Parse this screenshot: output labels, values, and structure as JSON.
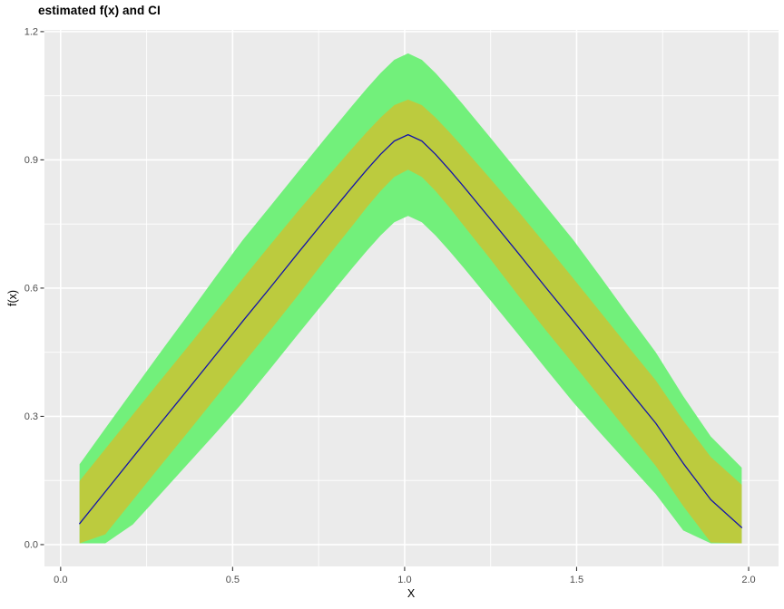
{
  "title": "estimated f(x) and CI",
  "colors": {
    "panel_bg": "#EBEBEB",
    "grid": "#FFFFFF",
    "outer_band": "#72F07B",
    "inner_band": "#BCCB3E",
    "line": "#1414AA",
    "tick_label": "#4D4D4D",
    "tick_mark": "#333333",
    "text": "#000000"
  },
  "axes": {
    "x": {
      "label": "X"
    },
    "y": {
      "label": "f(x)"
    }
  },
  "chart_data": {
    "type": "line",
    "title": "estimated f(x) and CI",
    "xlabel": "X",
    "ylabel": "f(x)",
    "xlim": [
      -0.047,
      2.087
    ],
    "ylim": [
      -0.051,
      1.204
    ],
    "grid": "white major and minor gridlines on grey panel, legend none",
    "x_ticks": [
      {
        "v": 0.0,
        "label": "0.0"
      },
      {
        "v": 0.5,
        "label": "0.5"
      },
      {
        "v": 1.0,
        "label": "1.0"
      },
      {
        "v": 1.5,
        "label": "1.5"
      },
      {
        "v": 2.0,
        "label": "2.0"
      }
    ],
    "y_ticks": [
      {
        "v": 0.0,
        "label": "0.0"
      },
      {
        "v": 0.3,
        "label": "0.3"
      },
      {
        "v": 0.6,
        "label": "0.6"
      },
      {
        "v": 0.9,
        "label": "0.9"
      },
      {
        "v": 1.2,
        "label": "1.2"
      }
    ],
    "x_minor": [
      0.25,
      0.75,
      1.25,
      1.75
    ],
    "y_minor": [
      0.15,
      0.45,
      0.75,
      1.05
    ],
    "x": [
      0.055,
      0.13,
      0.21,
      0.29,
      0.37,
      0.45,
      0.53,
      0.61,
      0.69,
      0.77,
      0.85,
      0.89,
      0.93,
      0.97,
      1.01,
      1.05,
      1.09,
      1.13,
      1.17,
      1.25,
      1.33,
      1.41,
      1.49,
      1.57,
      1.65,
      1.73,
      1.81,
      1.89,
      1.98
    ],
    "bands": [
      {
        "name": "outer CI",
        "color": "#72F07B",
        "hi": [
          0.188,
          0.272,
          0.361,
          0.45,
          0.537,
          0.626,
          0.713,
          0.792,
          0.872,
          0.951,
          1.029,
          1.067,
          1.103,
          1.134,
          1.149,
          1.134,
          1.103,
          1.067,
          1.029,
          0.951,
          0.872,
          0.792,
          0.713,
          0.626,
          0.537,
          0.45,
          0.347,
          0.253,
          0.18
        ],
        "lo": [
          0.003,
          0.003,
          0.047,
          0.118,
          0.189,
          0.26,
          0.333,
          0.412,
          0.492,
          0.571,
          0.649,
          0.687,
          0.723,
          0.754,
          0.769,
          0.754,
          0.723,
          0.687,
          0.649,
          0.571,
          0.492,
          0.412,
          0.333,
          0.26,
          0.189,
          0.118,
          0.033,
          0.003,
          0.003
        ]
      },
      {
        "name": "inner CI",
        "color": "#BCCB3E",
        "hi": [
          0.149,
          0.224,
          0.304,
          0.384,
          0.463,
          0.543,
          0.623,
          0.702,
          0.78,
          0.855,
          0.929,
          0.965,
          0.999,
          1.028,
          1.041,
          1.028,
          0.999,
          0.965,
          0.929,
          0.855,
          0.78,
          0.702,
          0.623,
          0.543,
          0.463,
          0.384,
          0.29,
          0.205,
          0.14
        ],
        "lo": [
          0.003,
          0.024,
          0.104,
          0.184,
          0.263,
          0.343,
          0.423,
          0.502,
          0.583,
          0.667,
          0.748,
          0.789,
          0.827,
          0.86,
          0.877,
          0.86,
          0.827,
          0.789,
          0.748,
          0.667,
          0.583,
          0.502,
          0.423,
          0.343,
          0.263,
          0.184,
          0.09,
          0.005,
          0.003
        ]
      }
    ],
    "series": [
      {
        "name": "estimated f(x)",
        "color": "#1414AA",
        "values": [
          0.049,
          0.124,
          0.204,
          0.284,
          0.363,
          0.443,
          0.523,
          0.602,
          0.682,
          0.761,
          0.839,
          0.877,
          0.913,
          0.944,
          0.959,
          0.944,
          0.913,
          0.877,
          0.839,
          0.761,
          0.682,
          0.602,
          0.523,
          0.443,
          0.363,
          0.284,
          0.19,
          0.105,
          0.04
        ]
      }
    ]
  }
}
